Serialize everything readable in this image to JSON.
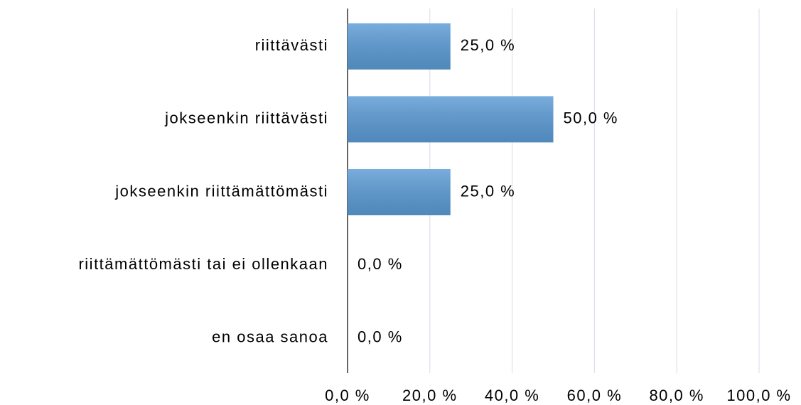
{
  "chart_data": {
    "type": "bar",
    "orientation": "horizontal",
    "categories": [
      "riittävästi",
      "jokseenkin riittävästi",
      "jokseenkin riittämättömästi",
      "riittämättömästi tai ei ollenkaan",
      "en osaa sanoa"
    ],
    "values": [
      25,
      50,
      25,
      0,
      0
    ],
    "value_labels": [
      "25,0 %",
      "50,0 %",
      "25,0 %",
      "0,0 %",
      "0,0 %"
    ],
    "color": "#5b9bd5",
    "xlim": [
      0,
      100
    ],
    "xticks": [
      {
        "value": 0,
        "label": "0,0 %"
      },
      {
        "value": 20,
        "label": "20,0 %"
      },
      {
        "value": 40,
        "label": "40,0 %"
      },
      {
        "value": 60,
        "label": "60,0 %"
      },
      {
        "value": 80,
        "label": "80,0 %"
      },
      {
        "value": 100,
        "label": "100,0 %"
      }
    ],
    "grid": true
  }
}
